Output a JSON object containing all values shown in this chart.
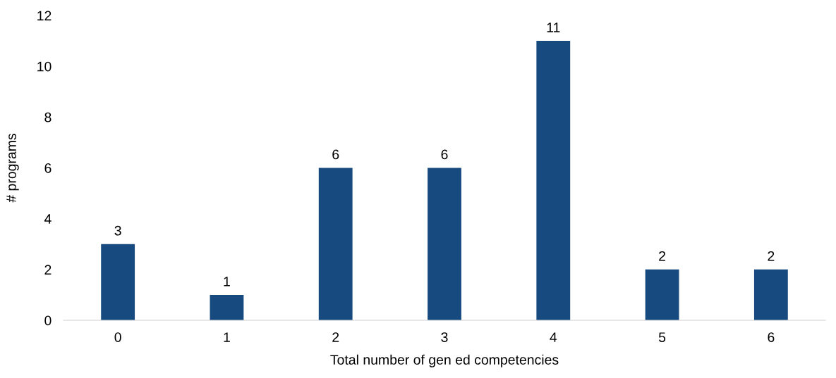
{
  "chart_data": {
    "type": "bar",
    "xlabel": "Total number of gen ed competencies",
    "ylabel": "# programs",
    "categories": [
      "0",
      "1",
      "2",
      "3",
      "4",
      "5",
      "6"
    ],
    "values": [
      3,
      1,
      6,
      6,
      11,
      2,
      2
    ],
    "color": "#174a7e",
    "ylim": [
      0,
      12
    ],
    "yticks": [
      0,
      2,
      4,
      6,
      8,
      10,
      12
    ],
    "grid": false,
    "data_labels": true
  }
}
